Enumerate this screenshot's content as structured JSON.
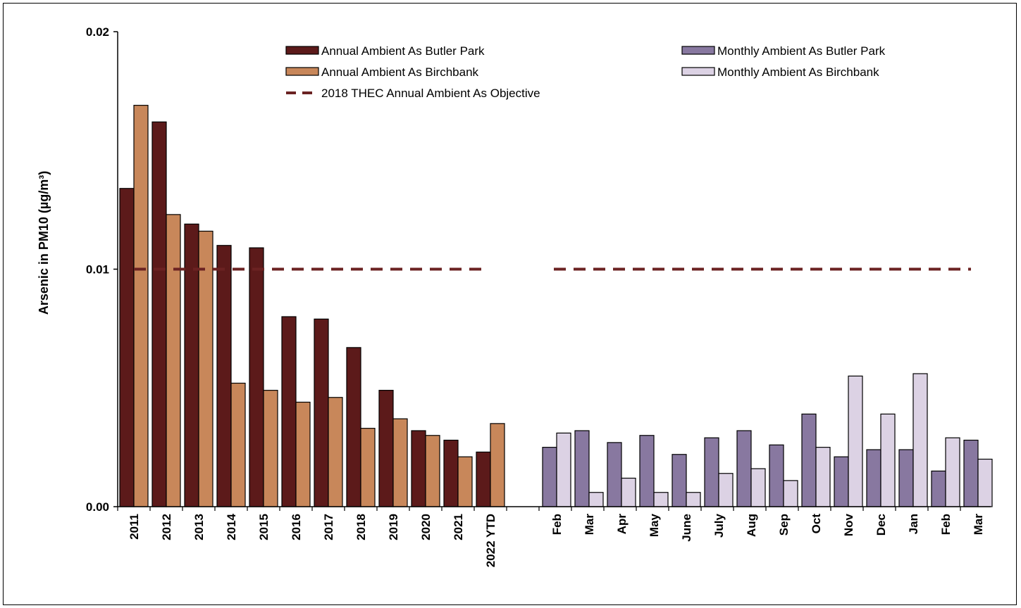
{
  "chart_data": {
    "type": "bar",
    "ylabel": "Arsenic in PM10 (µg/m³)",
    "ylim": [
      0,
      0.02
    ],
    "yticks": [
      "0.00",
      "0.01",
      "0.02"
    ],
    "ytick_values": [
      0,
      0.01,
      0.02
    ],
    "objective_value": 0.01,
    "legend_placement": "top",
    "colors": {
      "annual_butler": "#5c1a1a",
      "annual_birchbank": "#c8875a",
      "monthly_butler": "#8878a0",
      "monthly_birchbank": "#dcd2e4",
      "objective": "#6b2222"
    },
    "annual": {
      "categories": [
        "2011",
        "2012",
        "2013",
        "2014",
        "2015",
        "2016",
        "2017",
        "2018",
        "2019",
        "2020",
        "2021",
        "2022 YTD"
      ],
      "series": [
        {
          "name": "Annual Ambient As Butler Park",
          "values": [
            0.0134,
            0.0162,
            0.0119,
            0.011,
            0.0109,
            0.008,
            0.0079,
            0.0067,
            0.0049,
            0.0032,
            0.0028,
            0.0023
          ]
        },
        {
          "name": "Annual Ambient As Birchbank",
          "values": [
            0.0169,
            0.0123,
            0.0116,
            0.0052,
            0.0049,
            0.0044,
            0.0046,
            0.0033,
            0.0037,
            0.003,
            0.0021,
            0.0035
          ]
        }
      ]
    },
    "monthly": {
      "categories": [
        "Feb",
        "Mar",
        "Apr",
        "May",
        "June",
        "July",
        "Aug",
        "Sep",
        "Oct",
        "Nov",
        "Dec",
        "Jan",
        "Feb",
        "Mar"
      ],
      "series": [
        {
          "name": "Monthly Ambient As Butler Park",
          "values": [
            0.0025,
            0.0032,
            0.0027,
            0.003,
            0.0022,
            0.0029,
            0.0032,
            0.0026,
            0.0039,
            0.0021,
            0.0024,
            0.0024,
            0.0015,
            0.0028
          ]
        },
        {
          "name": "Monthly Ambient As Birchbank",
          "values": [
            0.0031,
            0.0006,
            0.0012,
            0.0006,
            0.0006,
            0.0014,
            0.0016,
            0.0011,
            0.0025,
            0.0055,
            0.0039,
            0.0056,
            0.0029,
            0.002
          ]
        }
      ]
    },
    "objective_label": "2018 THEC Annual Ambient As Objective"
  }
}
